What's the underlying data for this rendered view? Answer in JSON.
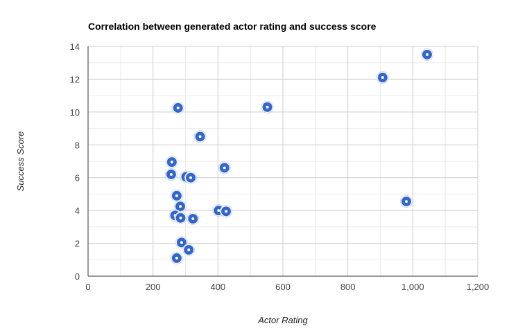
{
  "chart_data": {
    "type": "scatter",
    "title": "Correlation between generated actor rating and success score",
    "xlabel": "Actor Rating",
    "ylabel": "Success Score",
    "xlim": [
      0,
      1200
    ],
    "ylim": [
      0,
      14
    ],
    "x_ticks": [
      0,
      200,
      400,
      600,
      800,
      1000,
      1200
    ],
    "x_tick_labels": [
      "0",
      "200",
      "400",
      "600",
      "800",
      "1,000",
      "1,200"
    ],
    "y_ticks": [
      0,
      2,
      4,
      6,
      8,
      10,
      12,
      14
    ],
    "y_tick_labels": [
      "0",
      "2",
      "4",
      "6",
      "8",
      "10",
      "12",
      "14"
    ],
    "grid": true,
    "legend": "none",
    "color": "#3366cc",
    "points": [
      {
        "x": 1044,
        "y": 13.5
      },
      {
        "x": 907,
        "y": 12.1
      },
      {
        "x": 552,
        "y": 10.3
      },
      {
        "x": 277,
        "y": 10.25
      },
      {
        "x": 345,
        "y": 8.5
      },
      {
        "x": 258,
        "y": 6.95
      },
      {
        "x": 420,
        "y": 6.6
      },
      {
        "x": 256,
        "y": 6.2
      },
      {
        "x": 302,
        "y": 6.05
      },
      {
        "x": 316,
        "y": 6.0
      },
      {
        "x": 273,
        "y": 4.9
      },
      {
        "x": 980,
        "y": 4.55
      },
      {
        "x": 284,
        "y": 4.25
      },
      {
        "x": 402,
        "y": 4.0
      },
      {
        "x": 425,
        "y": 3.95
      },
      {
        "x": 268,
        "y": 3.7
      },
      {
        "x": 285,
        "y": 3.55
      },
      {
        "x": 323,
        "y": 3.5
      },
      {
        "x": 288,
        "y": 2.05
      },
      {
        "x": 310,
        "y": 1.6
      },
      {
        "x": 273,
        "y": 1.1
      }
    ]
  }
}
